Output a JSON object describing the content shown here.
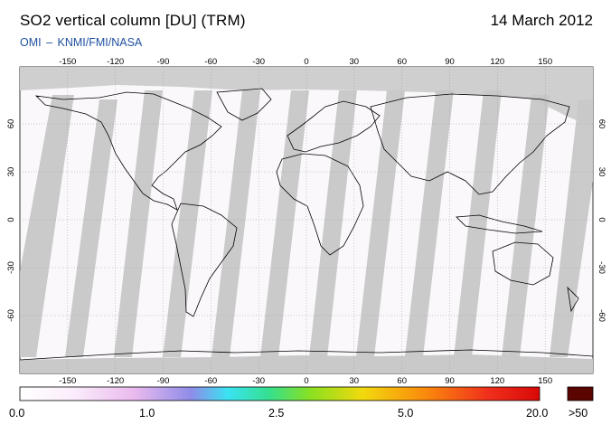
{
  "header": {
    "title": "SO2 vertical column [DU] (TRM)",
    "date": "14 March 2012",
    "credit": "OMI  –  KNMI/FMI/NASA"
  },
  "map": {
    "lon_ticks": [
      "-150",
      "-120",
      "-90",
      "-60",
      "-30",
      "0",
      "30",
      "60",
      "90",
      "120",
      "150"
    ],
    "lat_ticks": [
      "60",
      "30",
      "0",
      "-30",
      "-60"
    ],
    "ocean_color": "#fbf8fc",
    "swath_gap_color": "#cfcfcf",
    "coast_color": "#000000"
  },
  "colorbar": {
    "labels": [
      "0.0",
      "1.0",
      "2.5",
      "5.0",
      "20.0"
    ],
    "overflow_label": ">50",
    "overflow_color": "#5a0500"
  }
}
